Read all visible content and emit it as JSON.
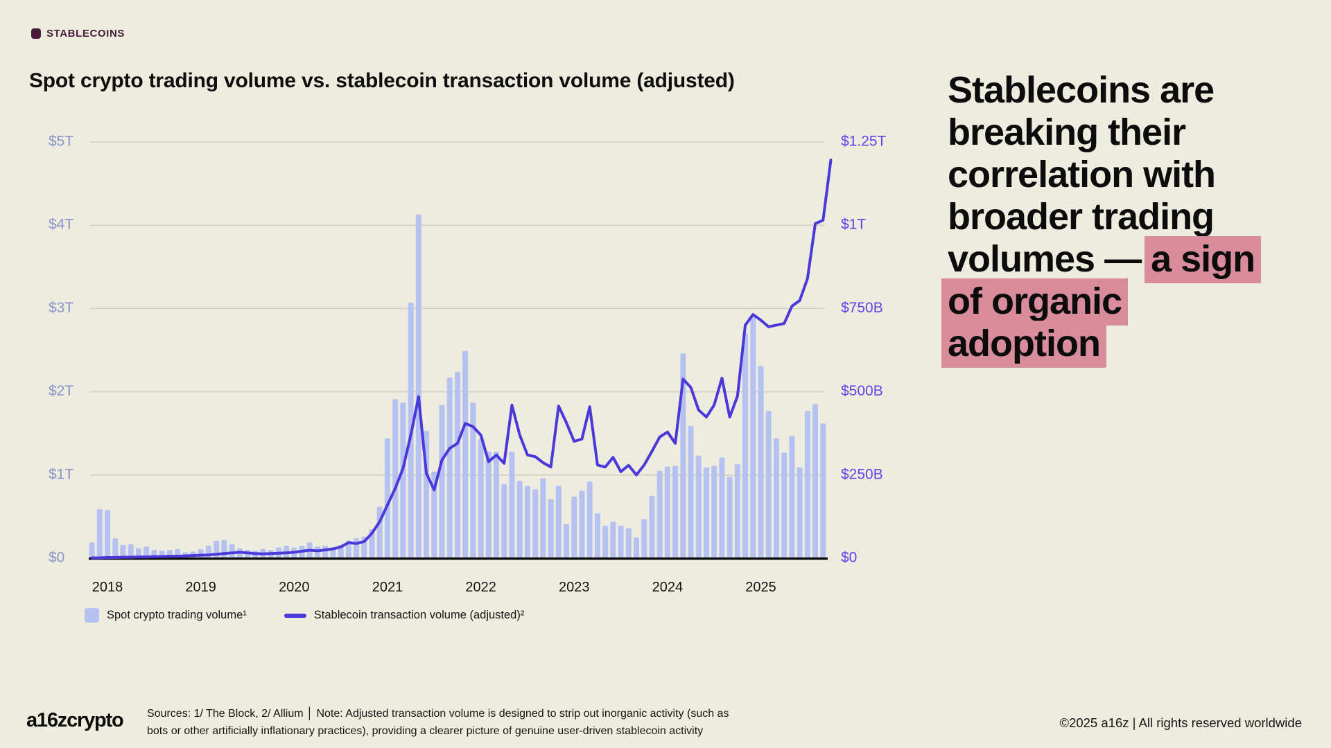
{
  "tag": {
    "label": "STABLECOINS",
    "color": "#471b39"
  },
  "chart": {
    "title": "Spot crypto trading volume vs. stablecoin transaction volume (adjusted)"
  },
  "chart_data": {
    "type": "bar+line",
    "title": "Spot crypto trading volume vs. stablecoin transaction volume (adjusted)",
    "start_month": "2017-11",
    "frequency": "monthly",
    "grid": true,
    "legend_position": "bottom-left",
    "x_ticks": [
      "2018",
      "2019",
      "2020",
      "2021",
      "2022",
      "2023",
      "2024",
      "2025"
    ],
    "left_axis": {
      "ticks_top_down": [
        "$5T",
        "$4T",
        "$3T",
        "$2T",
        "$1T",
        "$0"
      ],
      "range": [
        0,
        5
      ],
      "unit": "trillion USD",
      "color": "#8a93c9"
    },
    "right_axis": {
      "ticks_top_down": [
        "$1.25T",
        "$1T",
        "$750B",
        "$500B",
        "$250B",
        "$0"
      ],
      "range": [
        0,
        1250
      ],
      "unit": "billion USD",
      "color": "#5b45e8"
    },
    "bar_series": {
      "name": "Spot crypto trading volume",
      "legend_label": "Spot crypto trading volume¹",
      "axis": "left",
      "unit": "$T",
      "color": "#b5c2f1",
      "values": [
        0.19,
        0.59,
        0.58,
        0.24,
        0.16,
        0.17,
        0.12,
        0.14,
        0.1,
        0.09,
        0.1,
        0.11,
        0.07,
        0.08,
        0.11,
        0.15,
        0.21,
        0.22,
        0.17,
        0.12,
        0.1,
        0.09,
        0.11,
        0.1,
        0.13,
        0.15,
        0.13,
        0.15,
        0.19,
        0.14,
        0.15,
        0.13,
        0.16,
        0.21,
        0.24,
        0.26,
        0.35,
        0.62,
        1.44,
        1.91,
        1.87,
        3.07,
        4.13,
        1.53,
        1.04,
        1.84,
        2.17,
        2.24,
        2.49,
        1.87,
        1.43,
        1.28,
        1.28,
        0.89,
        1.28,
        0.93,
        0.87,
        0.83,
        0.96,
        0.71,
        0.87,
        0.41,
        0.74,
        0.81,
        0.92,
        0.54,
        0.39,
        0.44,
        0.39,
        0.36,
        0.25,
        0.47,
        0.75,
        1.05,
        1.1,
        1.11,
        2.46,
        1.59,
        1.23,
        1.09,
        1.11,
        1.21,
        0.98,
        1.13,
        2.7,
        2.9,
        2.31,
        1.77,
        1.44,
        1.27,
        1.47,
        1.09,
        1.77,
        1.85,
        1.62
      ]
    },
    "line_series": {
      "name": "Stablecoin transaction volume (adjusted)",
      "legend_label": "Stablecoin transaction volume (adjusted)²",
      "axis": "right",
      "unit": "$B",
      "color": "#4b38da",
      "values": [
        1,
        1,
        2,
        2,
        3,
        3,
        4,
        4,
        5,
        5,
        6,
        6,
        7,
        8,
        9,
        10,
        12,
        14,
        16,
        18,
        16,
        14,
        13,
        14,
        15,
        16,
        18,
        21,
        24,
        22,
        25,
        28,
        34,
        47,
        44,
        50,
        75,
        110,
        160,
        210,
        270,
        370,
        485,
        255,
        205,
        295,
        330,
        345,
        405,
        395,
        370,
        290,
        310,
        285,
        460,
        370,
        310,
        305,
        287,
        274,
        457,
        407,
        351,
        358,
        455,
        280,
        274,
        303,
        260,
        279,
        250,
        280,
        321,
        364,
        379,
        345,
        538,
        513,
        445,
        424,
        460,
        541,
        424,
        487,
        700,
        732,
        715,
        695,
        700,
        705,
        757,
        774,
        840,
        1005,
        1015,
        1196
      ]
    }
  },
  "headline": {
    "highlight_color": "#d98c9b",
    "lines": [
      [
        {
          "t": "Stablecoins are",
          "h": false
        }
      ],
      [
        {
          "t": "breaking their",
          "h": false
        }
      ],
      [
        {
          "t": "correlation with",
          "h": false
        }
      ],
      [
        {
          "t": "broader trading",
          "h": false
        }
      ],
      [
        {
          "t": "volumes — ",
          "h": false
        },
        {
          "t": "a sign",
          "h": true
        }
      ],
      [
        {
          "t": "of organic",
          "h": true
        }
      ],
      [
        {
          "t": "adoption",
          "h": true
        }
      ]
    ]
  },
  "footer": {
    "logo": "a16zcrypto",
    "sources_line1": "Sources: 1/ The Block, 2/ Allium  │  Note: Adjusted transaction volume is designed to strip out inorganic activity (such as",
    "sources_line2": "bots or other artificially inflationary practices), providing a clearer picture of genuine user-driven stablecoin activity",
    "copyright": "©2025 a16z | All rights reserved worldwide"
  }
}
